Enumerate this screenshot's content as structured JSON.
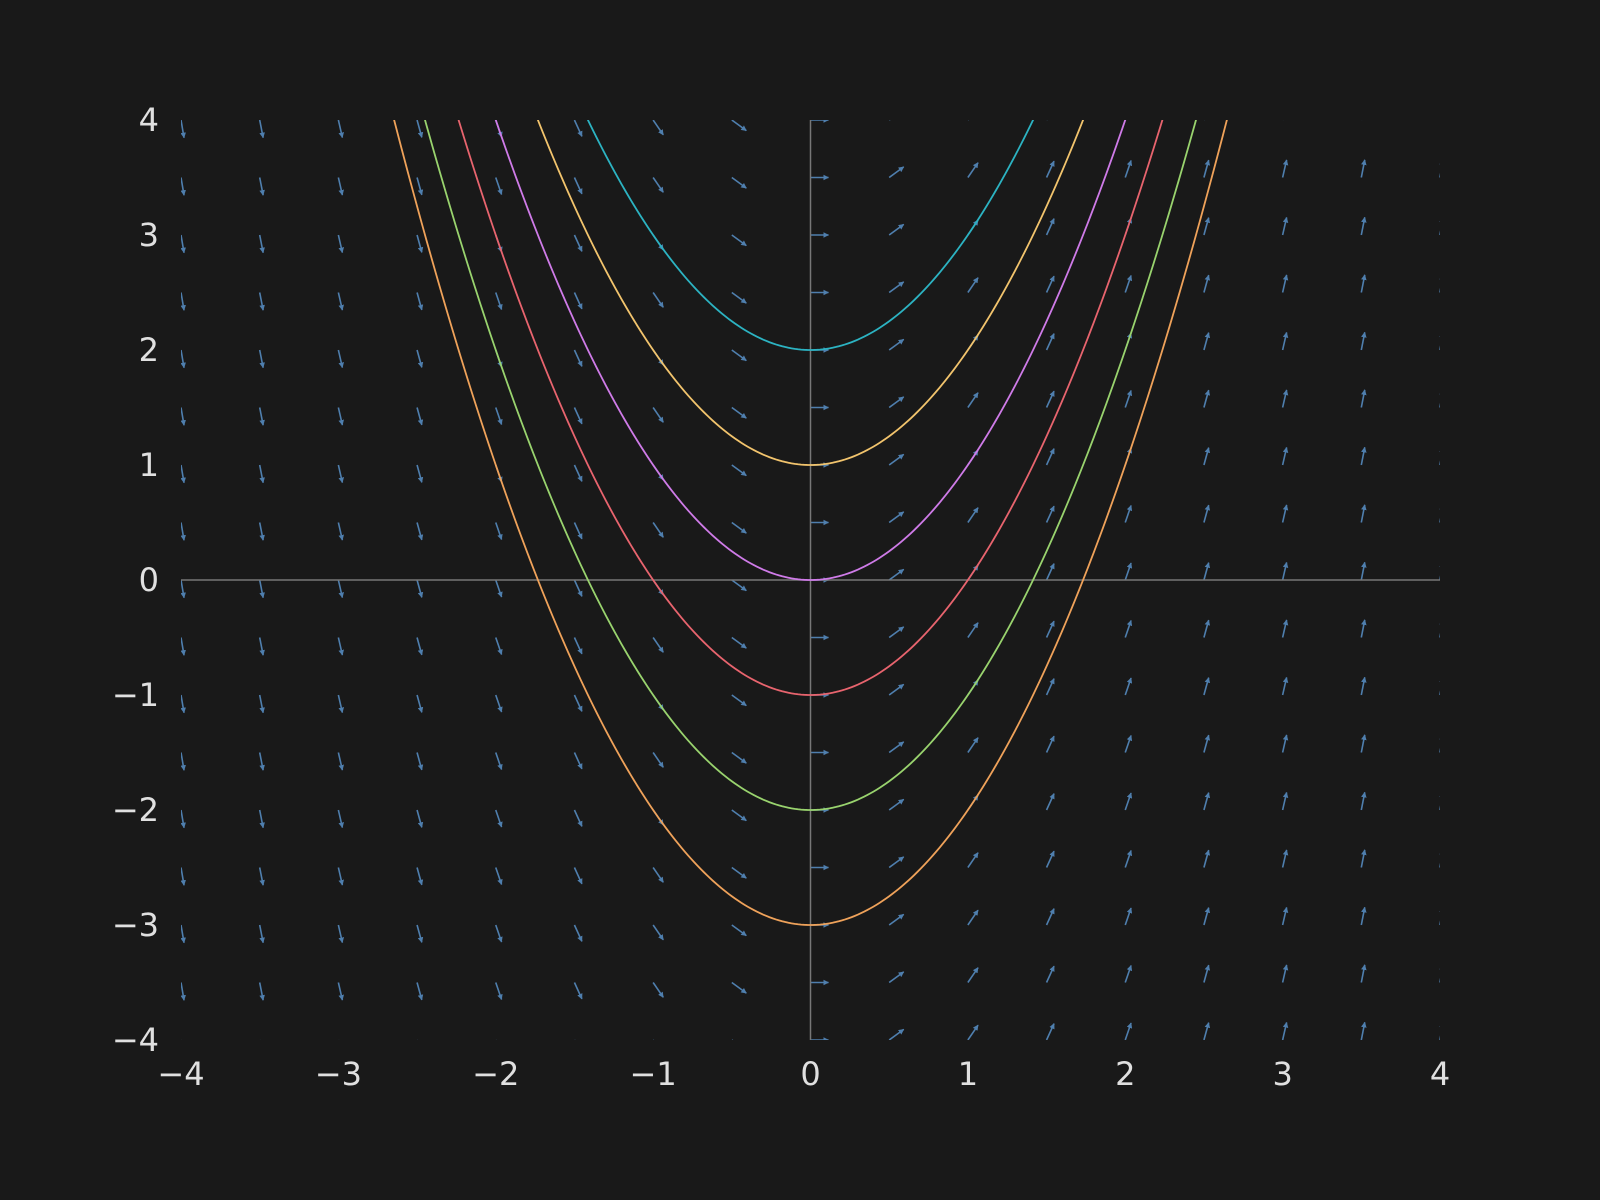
{
  "chart_data": {
    "type": "line",
    "title": "",
    "xlabel": "",
    "ylabel": "",
    "xlim": [
      -4,
      4
    ],
    "ylim": [
      -4,
      4
    ],
    "grid": false,
    "legend": "none",
    "x_ticks": [
      "−4",
      "−3",
      "−2",
      "−1",
      "0",
      "1",
      "2",
      "3",
      "4"
    ],
    "y_ticks": [
      "4",
      "3",
      "2",
      "1",
      "0",
      "−1",
      "−2",
      "−3",
      "−4"
    ],
    "background": "#191919",
    "axis_color": "#777777",
    "arrow_color": "#4f7fae",
    "series": [
      {
        "formula": "y = x^2 + 2",
        "c": 2,
        "color": "#2cb3c2"
      },
      {
        "formula": "y = x^2 + 1",
        "c": 1,
        "color": "#f2c46d"
      },
      {
        "formula": "y = x^2",
        "c": 0,
        "color": "#cf7be8"
      },
      {
        "formula": "y = x^2 - 1",
        "c": -1,
        "color": "#e8646e"
      },
      {
        "formula": "y = x^2 - 2",
        "c": -2,
        "color": "#99d36e"
      },
      {
        "formula": "y = x^2 - 3",
        "c": -3,
        "color": "#efa25a"
      }
    ],
    "slope_field": {
      "dy_dx": "2x",
      "x_values": [
        -4,
        -3.5,
        -3,
        -2.5,
        -2,
        -1.5,
        -1,
        -0.5,
        0,
        0.5,
        1,
        1.5,
        2,
        2.5,
        3,
        3.5,
        4
      ],
      "y_values": [
        -4,
        -3.5,
        -3,
        -2.5,
        -2,
        -1.5,
        -1,
        -0.5,
        0,
        0.5,
        1,
        1.5,
        2,
        2.5,
        3,
        3.5,
        4
      ]
    }
  }
}
